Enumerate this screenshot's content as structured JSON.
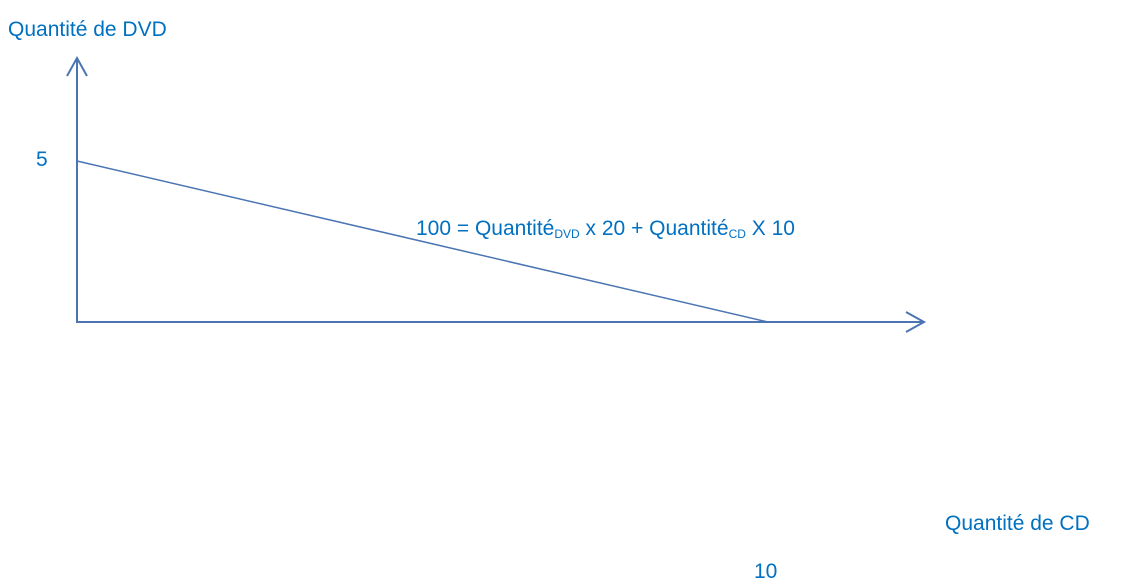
{
  "chart_data": {
    "type": "line",
    "xlabel": "Quantité de CD",
    "ylabel": "Quantité de DVD",
    "xlim": [
      0,
      10
    ],
    "ylim": [
      0,
      5
    ],
    "x_ticks": [
      "10"
    ],
    "y_ticks": [
      "5"
    ],
    "series": [
      {
        "x": [
          0,
          10
        ],
        "y": [
          5,
          0
        ]
      }
    ],
    "annotation": {
      "prefix": "100 = Quantité",
      "sub1": "DVD",
      "middle": " x 20 + Quantité",
      "sub2": "CD",
      "suffix": " X 10"
    },
    "grid": false
  },
  "colors": {
    "line": "#4a74b2",
    "text": "#0070c0"
  }
}
